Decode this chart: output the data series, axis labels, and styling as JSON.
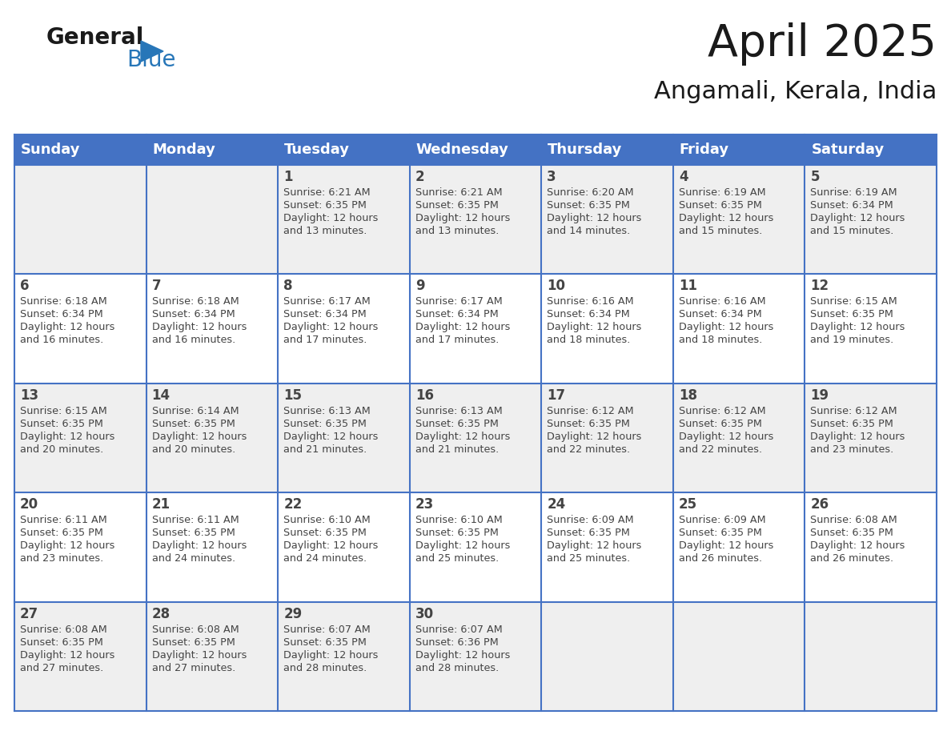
{
  "title": "April 2025",
  "subtitle": "Angamali, Kerala, India",
  "header_bg": "#4472C4",
  "header_text_color": "#FFFFFF",
  "header_font_size": 13,
  "days_of_week": [
    "Sunday",
    "Monday",
    "Tuesday",
    "Wednesday",
    "Thursday",
    "Friday",
    "Saturday"
  ],
  "title_fontsize": 40,
  "subtitle_fontsize": 22,
  "cell_bg_row0": "#EFEFEF",
  "cell_bg_row1": "#FFFFFF",
  "cell_bg_row2": "#EFEFEF",
  "cell_bg_row3": "#FFFFFF",
  "cell_bg_row4": "#EFEFEF",
  "line_color": "#4472C4",
  "text_color": "#444444",
  "logo_general_color": "#1a1a1a",
  "logo_blue_color": "#2776B8",
  "calendar_data": [
    [
      null,
      null,
      {
        "day": 1,
        "sunrise": "6:21 AM",
        "sunset": "6:35 PM",
        "daylight": "12 hours and 13 minutes."
      },
      {
        "day": 2,
        "sunrise": "6:21 AM",
        "sunset": "6:35 PM",
        "daylight": "12 hours and 13 minutes."
      },
      {
        "day": 3,
        "sunrise": "6:20 AM",
        "sunset": "6:35 PM",
        "daylight": "12 hours and 14 minutes."
      },
      {
        "day": 4,
        "sunrise": "6:19 AM",
        "sunset": "6:35 PM",
        "daylight": "12 hours and 15 minutes."
      },
      {
        "day": 5,
        "sunrise": "6:19 AM",
        "sunset": "6:34 PM",
        "daylight": "12 hours and 15 minutes."
      }
    ],
    [
      {
        "day": 6,
        "sunrise": "6:18 AM",
        "sunset": "6:34 PM",
        "daylight": "12 hours and 16 minutes."
      },
      {
        "day": 7,
        "sunrise": "6:18 AM",
        "sunset": "6:34 PM",
        "daylight": "12 hours and 16 minutes."
      },
      {
        "day": 8,
        "sunrise": "6:17 AM",
        "sunset": "6:34 PM",
        "daylight": "12 hours and 17 minutes."
      },
      {
        "day": 9,
        "sunrise": "6:17 AM",
        "sunset": "6:34 PM",
        "daylight": "12 hours and 17 minutes."
      },
      {
        "day": 10,
        "sunrise": "6:16 AM",
        "sunset": "6:34 PM",
        "daylight": "12 hours and 18 minutes."
      },
      {
        "day": 11,
        "sunrise": "6:16 AM",
        "sunset": "6:34 PM",
        "daylight": "12 hours and 18 minutes."
      },
      {
        "day": 12,
        "sunrise": "6:15 AM",
        "sunset": "6:35 PM",
        "daylight": "12 hours and 19 minutes."
      }
    ],
    [
      {
        "day": 13,
        "sunrise": "6:15 AM",
        "sunset": "6:35 PM",
        "daylight": "12 hours and 20 minutes."
      },
      {
        "day": 14,
        "sunrise": "6:14 AM",
        "sunset": "6:35 PM",
        "daylight": "12 hours and 20 minutes."
      },
      {
        "day": 15,
        "sunrise": "6:13 AM",
        "sunset": "6:35 PM",
        "daylight": "12 hours and 21 minutes."
      },
      {
        "day": 16,
        "sunrise": "6:13 AM",
        "sunset": "6:35 PM",
        "daylight": "12 hours and 21 minutes."
      },
      {
        "day": 17,
        "sunrise": "6:12 AM",
        "sunset": "6:35 PM",
        "daylight": "12 hours and 22 minutes."
      },
      {
        "day": 18,
        "sunrise": "6:12 AM",
        "sunset": "6:35 PM",
        "daylight": "12 hours and 22 minutes."
      },
      {
        "day": 19,
        "sunrise": "6:12 AM",
        "sunset": "6:35 PM",
        "daylight": "12 hours and 23 minutes."
      }
    ],
    [
      {
        "day": 20,
        "sunrise": "6:11 AM",
        "sunset": "6:35 PM",
        "daylight": "12 hours and 23 minutes."
      },
      {
        "day": 21,
        "sunrise": "6:11 AM",
        "sunset": "6:35 PM",
        "daylight": "12 hours and 24 minutes."
      },
      {
        "day": 22,
        "sunrise": "6:10 AM",
        "sunset": "6:35 PM",
        "daylight": "12 hours and 24 minutes."
      },
      {
        "day": 23,
        "sunrise": "6:10 AM",
        "sunset": "6:35 PM",
        "daylight": "12 hours and 25 minutes."
      },
      {
        "day": 24,
        "sunrise": "6:09 AM",
        "sunset": "6:35 PM",
        "daylight": "12 hours and 25 minutes."
      },
      {
        "day": 25,
        "sunrise": "6:09 AM",
        "sunset": "6:35 PM",
        "daylight": "12 hours and 26 minutes."
      },
      {
        "day": 26,
        "sunrise": "6:08 AM",
        "sunset": "6:35 PM",
        "daylight": "12 hours and 26 minutes."
      }
    ],
    [
      {
        "day": 27,
        "sunrise": "6:08 AM",
        "sunset": "6:35 PM",
        "daylight": "12 hours and 27 minutes."
      },
      {
        "day": 28,
        "sunrise": "6:08 AM",
        "sunset": "6:35 PM",
        "daylight": "12 hours and 27 minutes."
      },
      {
        "day": 29,
        "sunrise": "6:07 AM",
        "sunset": "6:35 PM",
        "daylight": "12 hours and 28 minutes."
      },
      {
        "day": 30,
        "sunrise": "6:07 AM",
        "sunset": "6:36 PM",
        "daylight": "12 hours and 28 minutes."
      },
      null,
      null,
      null
    ]
  ],
  "row_bg_colors": [
    "#EFEFEF",
    "#FFFFFF",
    "#EFEFEF",
    "#FFFFFF",
    "#EFEFEF"
  ]
}
